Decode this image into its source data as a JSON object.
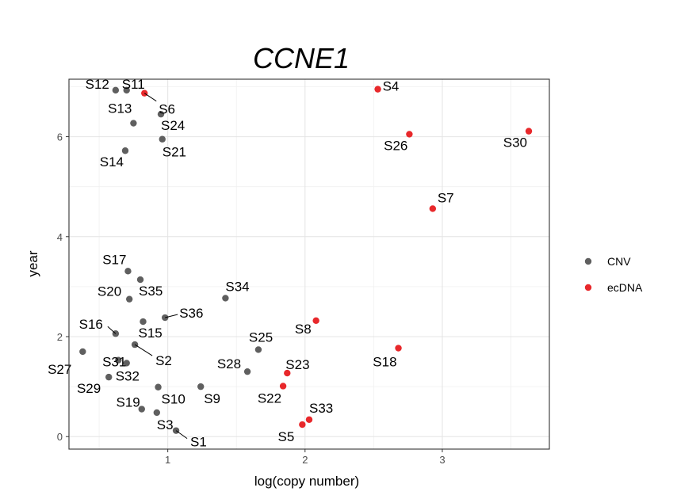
{
  "chart_data": {
    "type": "scatter",
    "title": "CCNE1",
    "xlabel": "log(copy number)",
    "ylabel": "year",
    "xlim": [
      0.28,
      3.78
    ],
    "ylim": [
      -0.25,
      7.15
    ],
    "xticks": [
      1,
      2,
      3
    ],
    "yticks": [
      0,
      2,
      4,
      6
    ],
    "grid": true,
    "legend_position": "right",
    "series": [
      {
        "name": "CNV",
        "color": "#5f5f5f",
        "points": [
          {
            "label": "S12",
            "x": 0.62,
            "y": 6.93
          },
          {
            "label": "S11",
            "x": 0.7,
            "y": 6.93
          },
          {
            "label": "S13",
            "x": 0.75,
            "y": 6.27
          },
          {
            "label": "S24",
            "x": 0.95,
            "y": 6.45
          },
          {
            "label": "S21",
            "x": 0.96,
            "y": 5.95
          },
          {
            "label": "S14",
            "x": 0.69,
            "y": 5.72
          },
          {
            "label": "S17",
            "x": 0.71,
            "y": 3.31
          },
          {
            "label": "S35",
            "x": 0.8,
            "y": 3.14
          },
          {
            "label": "S20",
            "x": 0.72,
            "y": 2.75
          },
          {
            "label": "S34",
            "x": 1.42,
            "y": 2.77
          },
          {
            "label": "S36",
            "x": 0.98,
            "y": 2.38
          },
          {
            "label": "S15",
            "x": 0.82,
            "y": 2.3
          },
          {
            "label": "S16",
            "x": 0.62,
            "y": 2.06
          },
          {
            "label": "S2",
            "x": 0.76,
            "y": 1.84
          },
          {
            "label": "S31",
            "x": 0.64,
            "y": 1.53
          },
          {
            "label": "S27",
            "x": 0.38,
            "y": 1.7
          },
          {
            "label": "S32",
            "x": 0.7,
            "y": 1.47
          },
          {
            "label": "S29",
            "x": 0.57,
            "y": 1.19
          },
          {
            "label": "S25",
            "x": 1.66,
            "y": 1.74
          },
          {
            "label": "S28",
            "x": 1.58,
            "y": 1.3
          },
          {
            "label": "S9",
            "x": 1.24,
            "y": 1.0
          },
          {
            "label": "S10",
            "x": 0.93,
            "y": 0.99
          },
          {
            "label": "S19",
            "x": 0.81,
            "y": 0.55
          },
          {
            "label": "S3",
            "x": 0.92,
            "y": 0.48
          },
          {
            "label": "S1",
            "x": 1.06,
            "y": 0.12
          }
        ]
      },
      {
        "name": "ecDNA",
        "color": "#e8282b",
        "points": [
          {
            "label": "S6",
            "x": 0.83,
            "y": 6.87
          },
          {
            "label": "S4",
            "x": 2.53,
            "y": 6.95
          },
          {
            "label": "S26",
            "x": 2.76,
            "y": 6.05
          },
          {
            "label": "S30",
            "x": 3.63,
            "y": 6.11
          },
          {
            "label": "S7",
            "x": 2.93,
            "y": 4.56
          },
          {
            "label": "S8",
            "x": 2.08,
            "y": 2.32
          },
          {
            "label": "S18",
            "x": 2.68,
            "y": 1.77
          },
          {
            "label": "S23",
            "x": 1.87,
            "y": 1.27
          },
          {
            "label": "S22",
            "x": 1.84,
            "y": 1.01
          },
          {
            "label": "S33",
            "x": 2.03,
            "y": 0.34
          },
          {
            "label": "S5",
            "x": 1.98,
            "y": 0.24
          }
        ]
      }
    ]
  }
}
